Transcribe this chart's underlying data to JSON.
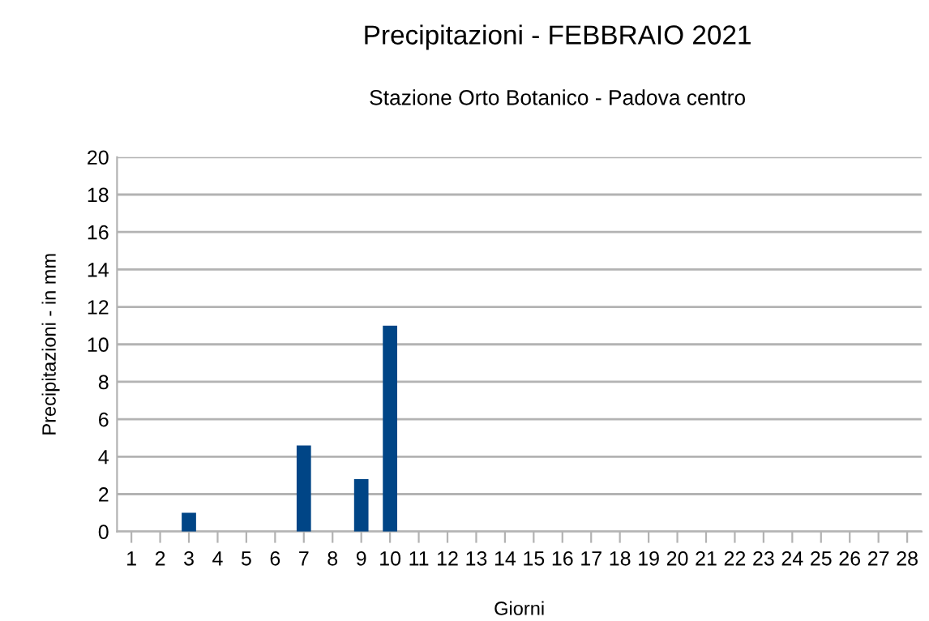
{
  "chart_data": {
    "type": "bar",
    "title": "Precipitazioni - FEBBRAIO 2021",
    "subtitle": "Stazione Orto Botanico - Padova centro",
    "xlabel": "Giorni",
    "ylabel": "Precipitazioni - in mm",
    "categories": [
      "1",
      "2",
      "3",
      "4",
      "5",
      "6",
      "7",
      "8",
      "9",
      "10",
      "11",
      "12",
      "13",
      "14",
      "15",
      "16",
      "17",
      "18",
      "19",
      "20",
      "21",
      "22",
      "23",
      "24",
      "25",
      "26",
      "27",
      "28"
    ],
    "values": [
      0,
      0,
      1.0,
      0,
      0,
      0,
      4.6,
      0,
      2.8,
      11.0,
      0,
      0,
      0,
      0,
      0,
      0,
      0,
      0,
      0,
      0,
      0,
      0,
      0,
      0,
      0,
      0,
      0,
      0
    ],
    "color": "#004586",
    "ylim": [
      0,
      20
    ],
    "yticks": [
      0,
      2,
      4,
      6,
      8,
      10,
      12,
      14,
      16,
      18,
      20
    ],
    "grid": "y",
    "legend": false
  }
}
